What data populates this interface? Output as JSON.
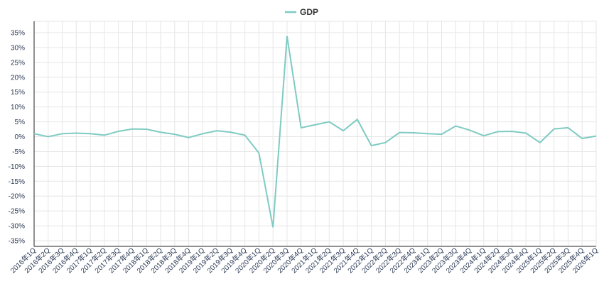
{
  "chart_data": {
    "type": "line",
    "legend": {
      "position": "top-center",
      "entries": [
        "GDP"
      ]
    },
    "grid": true,
    "ylim": [
      -35,
      35
    ],
    "y_ticks": [
      "35%",
      "30%",
      "25%",
      "20%",
      "15%",
      "10%",
      "5%",
      "0%",
      "-5%",
      "-10%",
      "-15%",
      "-20%",
      "-25%",
      "-30%",
      "-35%"
    ],
    "categories": [
      "2016年1Q",
      "2016年2Q",
      "2016年3Q",
      "2016年4Q",
      "2017年1Q",
      "2017年2Q",
      "2017年3Q",
      "2017年4Q",
      "2018年1Q",
      "2018年2Q",
      "2018年3Q",
      "2018年4Q",
      "2019年1Q",
      "2019年2Q",
      "2019年3Q",
      "2019年4Q",
      "2020年1Q",
      "2020年2Q",
      "2020年3Q",
      "2020年4Q",
      "2021年1Q",
      "2021年2Q",
      "2021年3Q",
      "2021年4Q",
      "2022年1Q",
      "2022年2Q",
      "2022年3Q",
      "2022年4Q",
      "2023年1Q",
      "2023年2Q",
      "2023年3Q",
      "2023年4Q",
      "2024年1Q",
      "2024年2Q",
      "2024年3Q",
      "2024年4Q",
      "2025年1Q",
      "2025年2Q",
      "2025年3Q",
      "2025年4Q",
      "2026年1Q"
    ],
    "series": [
      {
        "name": "GDP",
        "color": "#7ecbc2",
        "values": [
          1.0,
          0.0,
          1.0,
          1.2,
          1.0,
          0.5,
          1.8,
          2.6,
          2.5,
          1.5,
          0.8,
          -0.3,
          1.0,
          2.0,
          1.5,
          0.5,
          -5.5,
          -30.5,
          33.8,
          3.0,
          4.0,
          5.0,
          2.0,
          5.8,
          -3.0,
          -2.0,
          1.4,
          1.3,
          1.0,
          0.8,
          3.6,
          2.2,
          0.3,
          1.7,
          1.8,
          1.2,
          -2.0,
          2.6,
          3.0,
          -0.6,
          0.2
        ]
      }
    ]
  }
}
